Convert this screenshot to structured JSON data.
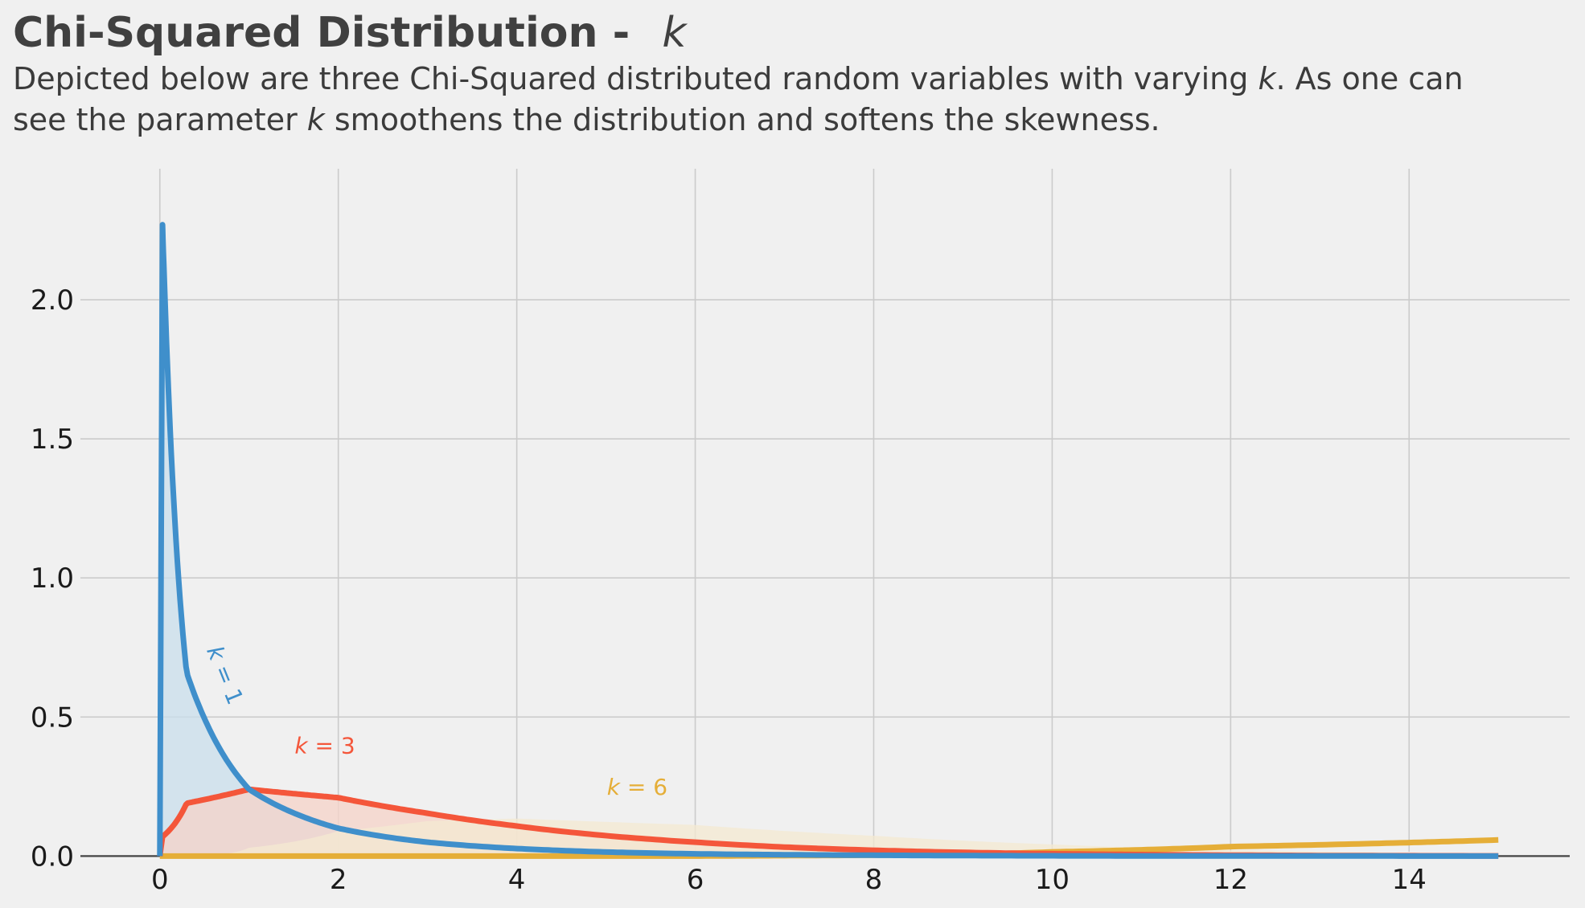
{
  "chart_data": {
    "type": "line",
    "title": "Chi-Squared Distribution - ",
    "title_symbol": "k",
    "subtitle_lines": [
      [
        "Depicted below are three Chi-Squared distributed random variables with varying ",
        "k",
        ". As one can"
      ],
      [
        "see the parameter ",
        "k",
        " smoothens the distribution and softens the skewness."
      ]
    ],
    "xlabel": "",
    "ylabel": "",
    "xlim": [
      -0.8,
      15.8
    ],
    "ylim": [
      -0.1,
      2.5
    ],
    "x_ticks": [
      0,
      2,
      4,
      6,
      8,
      10,
      12,
      14
    ],
    "y_ticks": [
      0.0,
      0.5,
      1.0,
      1.5,
      2.0
    ],
    "y_tick_labels": [
      "0.0",
      "0.5",
      "1.0",
      "1.5",
      "2.0"
    ],
    "grid": true,
    "x": [
      0.03,
      0.3,
      1.0,
      2.0,
      3.0,
      4.0,
      6.0,
      8.0,
      10.0,
      12.0,
      15.0
    ],
    "series": [
      {
        "name": "k = 1",
        "color": "#3f8fcb",
        "fill": "#c9dfec",
        "values": [
          2.27,
          0.66,
          0.24,
          0.1,
          0.05,
          0.027,
          0.008,
          0.003,
          0.001,
          0.0003,
          5e-05
        ],
        "label": {
          "prefix": "k",
          "suffix": " = 1"
        }
      },
      {
        "name": "k = 3",
        "color": "#f4563a",
        "fill": "#f6d3c8",
        "values": [
          0.07,
          0.19,
          0.24,
          0.21,
          0.154,
          0.108,
          0.05,
          0.021,
          0.0085,
          0.0034,
          0.0008
        ],
        "label": {
          "prefix": "k",
          "suffix": " = 3"
        }
      },
      {
        "name": "k = 6",
        "color": "#e5ae38",
        "fill": "#f4ead2",
        "values": [
          0.0,
          0.0,
          0.0,
          0.0,
          0.0,
          0.0,
          0.0,
          0.003,
          0.015,
          0.034,
          0.058
        ],
        "fill_values": [
          0.0,
          0.001,
          0.03,
          0.09,
          0.126,
          0.135,
          0.112,
          0.073,
          0.042,
          0.022,
          0.009
        ],
        "label": {
          "prefix": "k",
          "suffix": " = 6"
        }
      }
    ]
  }
}
